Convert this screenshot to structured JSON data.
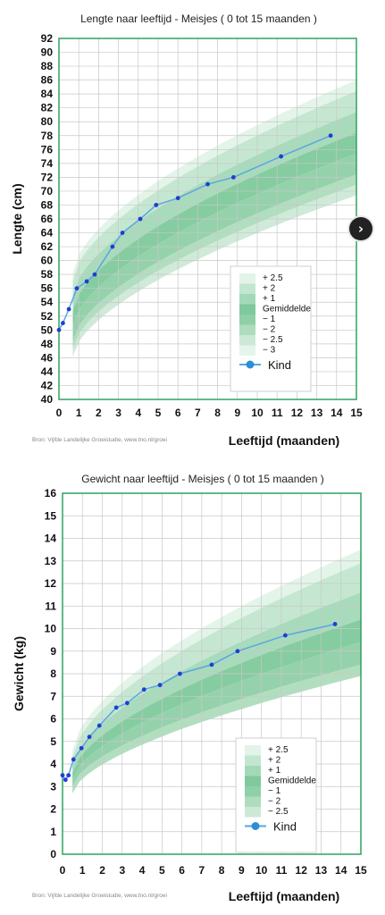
{
  "chart_data": [
    {
      "type": "line",
      "title": "Lengte naar leeftijd - Meisjes ( 0 tot 15 maanden )",
      "xlabel": "Leeftijd (maanden)",
      "ylabel": "Lengte (cm)",
      "source": "Bron: Vijfde Landelijke Groeistudie, www.tno.nl/groei",
      "xlim": [
        0,
        15
      ],
      "ylim": [
        40,
        92
      ],
      "x_ticks": [
        0,
        1,
        2,
        3,
        4,
        5,
        6,
        7,
        8,
        9,
        10,
        11,
        12,
        13,
        14,
        15
      ],
      "y_ticks": [
        40,
        42,
        44,
        46,
        48,
        50,
        52,
        54,
        56,
        58,
        60,
        62,
        64,
        66,
        68,
        70,
        72,
        74,
        76,
        78,
        80,
        82,
        84,
        86,
        88,
        90,
        92
      ],
      "grid": true,
      "legend_position": "bottom-right",
      "legend_entries": [
        "+ 2.5",
        "+ 2",
        "+ 1",
        "Gemiddelde",
        "− 1",
        "− 2",
        "− 2.5",
        "− 3"
      ],
      "reference_x": [
        0.7,
        15
      ],
      "reference_bands": [
        {
          "name": "+ 2.5",
          "start": [
            58.3,
            86.0
          ]
        },
        {
          "name": "+ 2",
          "start": [
            57.2,
            84.4
          ]
        },
        {
          "name": "+ 1",
          "start": [
            55.0,
            81.4
          ]
        },
        {
          "name": "Gemiddelde",
          "start": [
            52.8,
            78.4
          ]
        },
        {
          "name": "− 1",
          "start": [
            50.6,
            75.4
          ]
        },
        {
          "name": "− 2",
          "start": [
            48.4,
            72.4
          ]
        },
        {
          "name": "− 2.5",
          "start": [
            47.3,
            70.9
          ]
        },
        {
          "name": "− 3",
          "start": [
            46.2,
            69.4
          ]
        }
      ],
      "series": [
        {
          "name": "Kind",
          "x": [
            0,
            0.2,
            0.5,
            0.9,
            1.4,
            1.8,
            2.7,
            3.2,
            4.1,
            4.9,
            6.0,
            7.5,
            8.8,
            11.2,
            13.7
          ],
          "y": [
            50,
            51,
            53,
            56,
            57,
            58,
            62,
            64,
            66,
            68,
            69,
            71,
            72,
            75,
            78
          ]
        }
      ]
    },
    {
      "type": "line",
      "title": "Gewicht naar leeftijd - Meisjes ( 0 tot 15 maanden )",
      "xlabel": "Leeftijd (maanden)",
      "ylabel": "Gewicht (kg)",
      "source": "Bron: Vijfde Landelijke Groeistudie, www.tno.nl/groei",
      "xlim": [
        0,
        15
      ],
      "ylim": [
        0,
        16
      ],
      "x_ticks": [
        0,
        1,
        2,
        3,
        4,
        5,
        6,
        7,
        8,
        9,
        10,
        11,
        12,
        13,
        14,
        15
      ],
      "y_ticks": [
        0,
        1,
        2,
        3,
        4,
        5,
        6,
        7,
        8,
        9,
        10,
        11,
        12,
        13,
        14,
        15,
        16
      ],
      "grid": true,
      "legend_position": "bottom-right",
      "legend_entries": [
        "+ 2.5",
        "+ 2",
        "+ 1",
        "Gemiddelde",
        "− 1",
        "− 2",
        "− 2.5"
      ],
      "reference_x": [
        0.5,
        15
      ],
      "reference_bands": [
        {
          "name": "+ 2.5",
          "start": [
            4.6,
            13.5
          ]
        },
        {
          "name": "+ 2",
          "start": [
            4.3,
            12.9
          ]
        },
        {
          "name": "+ 1",
          "start": [
            3.9,
            11.6
          ]
        },
        {
          "name": "Gemiddelde",
          "start": [
            3.6,
            10.4
          ]
        },
        {
          "name": "− 1",
          "start": [
            3.3,
            9.4
          ]
        },
        {
          "name": "− 2",
          "start": [
            3.0,
            8.4
          ]
        },
        {
          "name": "− 2.5",
          "start": [
            2.7,
            7.9
          ]
        }
      ],
      "series": [
        {
          "name": "Kind",
          "x": [
            0,
            0.15,
            0.3,
            0.55,
            0.95,
            1.35,
            1.85,
            2.7,
            3.25,
            4.1,
            4.9,
            5.9,
            7.5,
            8.8,
            11.2,
            13.7
          ],
          "y": [
            3.5,
            3.3,
            3.5,
            4.2,
            4.7,
            5.2,
            5.7,
            6.5,
            6.7,
            7.3,
            7.5,
            8.0,
            8.4,
            9.0,
            9.7,
            10.2
          ]
        }
      ]
    }
  ],
  "ui": {
    "next_icon": "chevron-right-icon",
    "next_glyph": "›"
  },
  "colors": {
    "frame": "#2fa35d",
    "grid": "#c8c8c8",
    "kind_line": "#5aa6e0",
    "kind_dot": "#1f3fd1",
    "bands": [
      "#e2f3e8",
      "#c2e6cf",
      "#a3d9b8",
      "#7fc99c",
      "#8fd0a8",
      "#aedcbd",
      "#cce9d7",
      "#e6f5ec"
    ]
  }
}
